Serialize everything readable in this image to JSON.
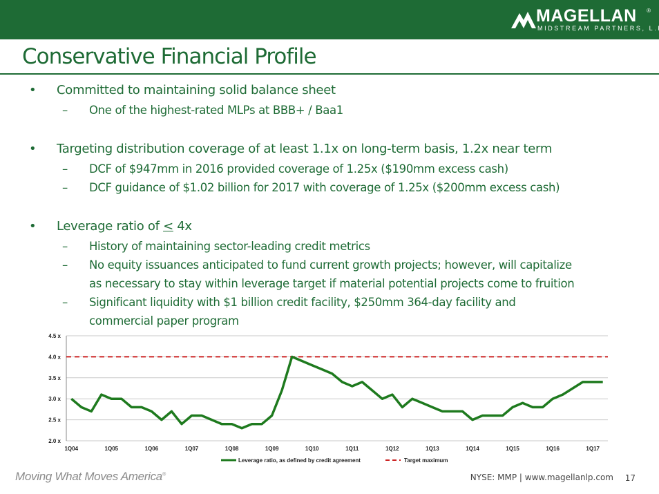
{
  "header": {
    "logo_name": "MAGELLAN",
    "logo_reg": "®",
    "logo_sub": "MIDSTREAM PARTNERS, L.P.",
    "brand_color": "#1e6b35"
  },
  "title": "Conservative Financial Profile",
  "bullets": [
    {
      "text": "Committed to maintaining solid balance sheet",
      "subs": [
        "One of the highest-rated MLPs at BBB+ / Baa1"
      ]
    },
    {
      "text": "Targeting distribution coverage of at least 1.1x on long-term basis, 1.2x near term",
      "subs": [
        "DCF of $947mm in 2016 provided coverage of 1.25x ($190mm excess cash)",
        "DCF guidance of $1.02 billion for 2017 with coverage of 1.25x ($200mm excess cash)"
      ]
    },
    {
      "text_prefix": "Leverage ratio of ",
      "text_symbol": "<",
      "text_suffix": " 4x",
      "subs": [
        "History of maintaining sector-leading credit metrics",
        "No equity issuances anticipated to fund current growth projects; however, will capitalize",
        "as necessary to stay within leverage target if material potential projects come to fruition",
        "Significant liquidity with $1 billion credit facility, $250mm 364-day facility and",
        "commercial paper program"
      ]
    }
  ],
  "chart_data": {
    "type": "line",
    "x_tick_labels": [
      "1Q04",
      "1Q05",
      "1Q06",
      "1Q07",
      "1Q08",
      "1Q09",
      "1Q10",
      "1Q11",
      "1Q12",
      "1Q13",
      "1Q14",
      "1Q15",
      "1Q16",
      "1Q17"
    ],
    "y_tick_labels": [
      "2.0 x",
      "2.5 x",
      "3.0 x",
      "3.5 x",
      "4.0 x",
      "4.5 x"
    ],
    "ylim": [
      2.0,
      4.5
    ],
    "x_quarters": [
      "1Q04",
      "2Q04",
      "3Q04",
      "4Q04",
      "1Q05",
      "2Q05",
      "3Q05",
      "4Q05",
      "1Q06",
      "2Q06",
      "3Q06",
      "4Q06",
      "1Q07",
      "2Q07",
      "3Q07",
      "4Q07",
      "1Q08",
      "2Q08",
      "3Q08",
      "4Q08",
      "1Q09",
      "2Q09",
      "3Q09",
      "4Q09",
      "1Q10",
      "2Q10",
      "3Q10",
      "4Q10",
      "1Q11",
      "2Q11",
      "3Q11",
      "4Q11",
      "1Q12",
      "2Q12",
      "3Q12",
      "4Q12",
      "1Q13",
      "2Q13",
      "3Q13",
      "4Q13",
      "1Q14",
      "2Q14",
      "3Q14",
      "4Q14",
      "1Q15",
      "2Q15",
      "3Q15",
      "4Q15",
      "1Q16",
      "2Q16",
      "3Q16",
      "4Q16",
      "1Q17",
      "2Q17"
    ],
    "series": [
      {
        "name": "Leverage ratio, as defined by credit agreement",
        "color": "#1e7a1e",
        "style": "solid",
        "values": [
          3.0,
          2.8,
          2.7,
          3.1,
          3.0,
          3.0,
          2.8,
          2.8,
          2.7,
          2.5,
          2.7,
          2.4,
          2.6,
          2.6,
          2.5,
          2.4,
          2.4,
          2.3,
          2.4,
          2.4,
          2.6,
          3.2,
          4.0,
          3.9,
          3.8,
          3.7,
          3.6,
          3.4,
          3.3,
          3.4,
          3.2,
          3.0,
          3.1,
          2.8,
          3.0,
          2.9,
          2.8,
          2.7,
          2.7,
          2.7,
          2.5,
          2.6,
          2.6,
          2.6,
          2.8,
          2.9,
          2.8,
          2.8,
          3.0,
          3.1,
          3.25,
          3.4,
          3.4,
          3.4
        ]
      },
      {
        "name": "Target maximum",
        "color": "#cc2222",
        "style": "dashed",
        "values": [
          4.0
        ]
      }
    ],
    "grid": true,
    "legend_position": "bottom"
  },
  "footer": {
    "tagline": "Moving What Moves America",
    "tagline_mark": "®",
    "ticker_site": "NYSE: MMP | www.magellanlp.com",
    "page": "17"
  }
}
